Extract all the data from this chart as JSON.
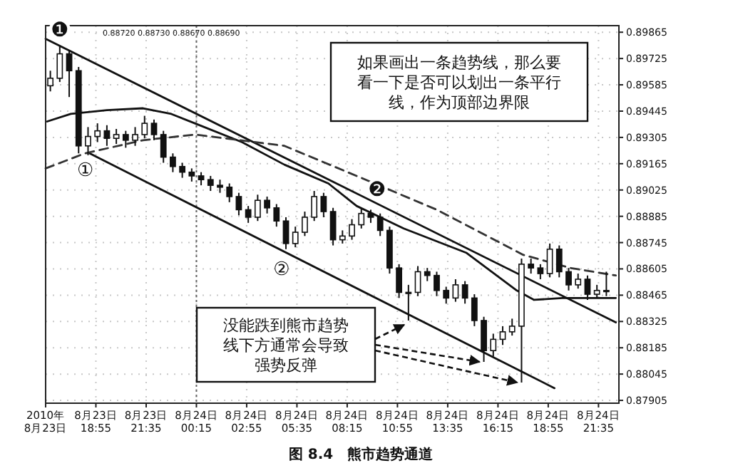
{
  "chart_data": {
    "type": "candlestick",
    "title": "图 8.4　熊市趋势通道",
    "annotations": [
      "0.88720 0.88730 0.88670 0.88690",
      "如果画出一条趋势线，那么要看一下是否可以划出一条平行线，作为顶部边界限",
      "没能跌到熊市趋势线下方通常会导致强势反弹",
      {
        "text": "❶",
        "x": "2010-08-23T17:00",
        "y": 0.8988
      },
      "①",
      "②",
      {
        "text": "❷",
        "x": "2010-08-24T09:50",
        "y": 0.8903
      }
    ],
    "x": [
      "2010-08-23T16:30",
      "2010-08-23T17:00",
      "2010-08-23T17:30",
      "2010-08-23T18:00",
      "2010-08-23T18:30",
      "2010-08-23T19:00",
      "2010-08-23T19:30",
      "2010-08-23T20:00",
      "2010-08-23T20:30",
      "2010-08-23T21:00",
      "2010-08-23T21:30",
      "2010-08-23T22:00",
      "2010-08-23T22:30",
      "2010-08-23T23:00",
      "2010-08-23T23:30",
      "2010-08-24T00:00",
      "2010-08-24T00:30",
      "2010-08-24T01:00",
      "2010-08-24T01:30",
      "2010-08-24T02:00",
      "2010-08-24T02:30",
      "2010-08-24T03:00",
      "2010-08-24T03:30",
      "2010-08-24T04:00",
      "2010-08-24T04:30",
      "2010-08-24T05:00",
      "2010-08-24T05:30",
      "2010-08-24T06:00",
      "2010-08-24T06:30",
      "2010-08-24T07:00",
      "2010-08-24T07:30",
      "2010-08-24T08:00",
      "2010-08-24T08:30",
      "2010-08-24T09:00",
      "2010-08-24T09:30",
      "2010-08-24T10:00",
      "2010-08-24T10:30",
      "2010-08-24T11:00",
      "2010-08-24T11:30",
      "2010-08-24T12:00",
      "2010-08-24T12:30",
      "2010-08-24T13:00",
      "2010-08-24T13:30",
      "2010-08-24T14:00",
      "2010-08-24T14:30",
      "2010-08-24T15:00",
      "2010-08-24T15:30",
      "2010-08-24T16:00",
      "2010-08-24T16:30",
      "2010-08-24T17:00",
      "2010-08-24T17:30",
      "2010-08-24T18:00",
      "2010-08-24T18:30",
      "2010-08-24T19:00",
      "2010-08-24T19:30",
      "2010-08-24T20:00",
      "2010-08-24T20:30",
      "2010-08-24T21:00",
      "2010-08-24T21:30",
      "2010-08-24T22:00"
    ],
    "ohlc": [
      [
        0.8958,
        0.8966,
        0.8955,
        0.8962
      ],
      [
        0.8962,
        0.8979,
        0.896,
        0.8975
      ],
      [
        0.8975,
        0.8977,
        0.8952,
        0.8966
      ],
      [
        0.8966,
        0.8968,
        0.8922,
        0.8926
      ],
      [
        0.8926,
        0.8936,
        0.8921,
        0.8931
      ],
      [
        0.8931,
        0.8938,
        0.8928,
        0.8934
      ],
      [
        0.8934,
        0.8937,
        0.8926,
        0.893
      ],
      [
        0.893,
        0.8935,
        0.8927,
        0.8932
      ],
      [
        0.8932,
        0.8934,
        0.8925,
        0.8929
      ],
      [
        0.8929,
        0.8936,
        0.8926,
        0.8932
      ],
      [
        0.8932,
        0.8942,
        0.893,
        0.8938
      ],
      [
        0.8938,
        0.894,
        0.8929,
        0.8932
      ],
      [
        0.8932,
        0.8934,
        0.8917,
        0.892
      ],
      [
        0.892,
        0.8922,
        0.8912,
        0.8915
      ],
      [
        0.8915,
        0.8917,
        0.8909,
        0.8912
      ],
      [
        0.8912,
        0.8914,
        0.8907,
        0.891
      ],
      [
        0.891,
        0.8912,
        0.8905,
        0.8908
      ],
      [
        0.8908,
        0.891,
        0.8902,
        0.8905
      ],
      [
        0.8905,
        0.8908,
        0.8901,
        0.8904
      ],
      [
        0.8904,
        0.8906,
        0.8896,
        0.8899
      ],
      [
        0.8899,
        0.8901,
        0.8889,
        0.8892
      ],
      [
        0.8892,
        0.8894,
        0.8885,
        0.8888
      ],
      [
        0.8888,
        0.89,
        0.8886,
        0.8897
      ],
      [
        0.8897,
        0.8899,
        0.889,
        0.8893
      ],
      [
        0.8893,
        0.8895,
        0.8883,
        0.8886
      ],
      [
        0.8886,
        0.8888,
        0.8871,
        0.8874
      ],
      [
        0.8874,
        0.8883,
        0.8872,
        0.888
      ],
      [
        0.888,
        0.8891,
        0.8878,
        0.8888
      ],
      [
        0.8888,
        0.8902,
        0.8886,
        0.8899
      ],
      [
        0.8899,
        0.8901,
        0.8888,
        0.8891
      ],
      [
        0.8891,
        0.8893,
        0.8873,
        0.8876
      ],
      [
        0.8876,
        0.8881,
        0.8874,
        0.8878
      ],
      [
        0.8878,
        0.8887,
        0.8876,
        0.8884
      ],
      [
        0.8884,
        0.8893,
        0.8882,
        0.889
      ],
      [
        0.889,
        0.8892,
        0.8885,
        0.8888
      ],
      [
        0.8888,
        0.889,
        0.8878,
        0.8881
      ],
      [
        0.8881,
        0.8883,
        0.8858,
        0.8861
      ],
      [
        0.8861,
        0.8863,
        0.8845,
        0.8848
      ],
      [
        0.8848,
        0.8852,
        0.8833,
        0.8848
      ],
      [
        0.8848,
        0.8862,
        0.8846,
        0.8859
      ],
      [
        0.8859,
        0.8861,
        0.8854,
        0.8857
      ],
      [
        0.8857,
        0.8859,
        0.8846,
        0.8849
      ],
      [
        0.8849,
        0.8851,
        0.8842,
        0.8845
      ],
      [
        0.8845,
        0.8855,
        0.8843,
        0.8852
      ],
      [
        0.8852,
        0.8854,
        0.8842,
        0.8845
      ],
      [
        0.8845,
        0.8847,
        0.883,
        0.8833
      ],
      [
        0.8833,
        0.8835,
        0.8811,
        0.8817
      ],
      [
        0.8817,
        0.8826,
        0.8814,
        0.8823
      ],
      [
        0.8823,
        0.883,
        0.882,
        0.8827
      ],
      [
        0.8827,
        0.8834,
        0.8825,
        0.883
      ],
      [
        0.883,
        0.8866,
        0.88,
        0.8863
      ],
      [
        0.8863,
        0.8866,
        0.8858,
        0.8861
      ],
      [
        0.8861,
        0.8863,
        0.8855,
        0.8858
      ],
      [
        0.8858,
        0.8874,
        0.8856,
        0.8871
      ],
      [
        0.8871,
        0.8873,
        0.8856,
        0.8859
      ],
      [
        0.8859,
        0.8861,
        0.8849,
        0.8852
      ],
      [
        0.8852,
        0.8858,
        0.885,
        0.8855
      ],
      [
        0.8855,
        0.8857,
        0.8844,
        0.8847
      ],
      [
        0.8847,
        0.8852,
        0.8845,
        0.8849
      ],
      [
        0.8849,
        0.8859,
        0.8846,
        0.8849
      ]
    ],
    "series": [
      {
        "type": "line",
        "color": "#111111",
        "line_style": "solid",
        "x": [
          "2010-08-23T16:15",
          "2010-08-24T22:30"
        ],
        "values": [
          0.8983,
          0.8832
        ]
      },
      {
        "type": "line",
        "color": "#111111",
        "line_style": "solid",
        "x": [
          "2010-08-23T18:35",
          "2010-08-24T19:15"
        ],
        "values": [
          0.8922,
          0.8797
        ]
      },
      {
        "type": "line",
        "color": "#111111",
        "line_style": "solid",
        "x": [
          "2010-08-23T16:20",
          "2010-08-23T17:35",
          "2010-08-23T19:30",
          "2010-08-23T21:25",
          "2010-08-23T22:55",
          "2010-08-24T00:10",
          "2010-08-24T02:40",
          "2010-08-24T04:55",
          "2010-08-24T07:15",
          "2010-08-24T08:45",
          "2010-08-24T11:15",
          "2010-08-24T14:35",
          "2010-08-24T17:15",
          "2010-08-24T18:10",
          "2010-08-24T19:40",
          "2010-08-24T22:30"
        ],
        "values": [
          0.8939,
          0.8943,
          0.8945,
          0.8946,
          0.8943,
          0.8938,
          0.8928,
          0.8916,
          0.8906,
          0.8894,
          0.8882,
          0.8869,
          0.8849,
          0.8844,
          0.8845,
          0.8845
        ]
      },
      {
        "type": "line",
        "color": "#333333",
        "line_style": "dashed",
        "x": [
          "2010-08-23T16:15",
          "2010-08-23T18:20",
          "2010-08-23T21:25",
          "2010-08-24T00:10",
          "2010-08-24T04:55",
          "2010-08-24T08:45",
          "2010-08-24T13:00",
          "2010-08-24T17:35",
          "2010-08-24T20:05",
          "2010-08-24T22:30"
        ],
        "values": [
          0.8914,
          0.8922,
          0.8929,
          0.8932,
          0.8926,
          0.891,
          0.8892,
          0.8868,
          0.8861,
          0.8857
        ]
      }
    ],
    "xlim": [
      "2010-08-23T16:15",
      "2010-08-24T22:40"
    ],
    "xticks": [
      {
        "value": "2010-08-23T16:15",
        "label": "2010年\n8月23日"
      },
      {
        "value": "2010-08-23T18:55",
        "label": "8月23日\n18:55"
      },
      {
        "value": "2010-08-23T21:35",
        "label": "8月23日\n21:35"
      },
      {
        "value": "2010-08-24T00:15",
        "label": "8月24日\n00:15"
      },
      {
        "value": "2010-08-24T02:55",
        "label": "8月24日\n02:55"
      },
      {
        "value": "2010-08-24T05:35",
        "label": "8月24日\n05:35"
      },
      {
        "value": "2010-08-24T08:15",
        "label": "8月24日\n08:15"
      },
      {
        "value": "2010-08-24T10:55",
        "label": "8月24日\n10:55"
      },
      {
        "value": "2010-08-24T13:35",
        "label": "8月24日\n13:35"
      },
      {
        "value": "2010-08-24T16:15",
        "label": "8月24日\n16:15"
      },
      {
        "value": "2010-08-24T18:55",
        "label": "8月24日\n18:55"
      },
      {
        "value": "2010-08-24T21:35",
        "label": "8月24日\n21:35"
      }
    ],
    "ylim": [
      0.8789,
      0.899
    ],
    "yticks": [
      {
        "value": 0.89865,
        "label": "0.89865"
      },
      {
        "value": 0.89725,
        "label": "0.89725"
      },
      {
        "value": 0.89585,
        "label": "0.89585"
      },
      {
        "value": 0.89445,
        "label": "0.89445"
      },
      {
        "value": 0.89305,
        "label": "0.89305"
      },
      {
        "value": 0.89165,
        "label": "0.89165"
      },
      {
        "value": 0.89025,
        "label": "0.89025"
      },
      {
        "value": 0.88885,
        "label": "0.88885"
      },
      {
        "value": 0.88745,
        "label": "0.88745"
      },
      {
        "value": 0.88605,
        "label": "0.88605"
      },
      {
        "value": 0.88465,
        "label": "0.88465"
      },
      {
        "value": 0.88325,
        "label": "0.88325"
      },
      {
        "value": 0.88185,
        "label": "0.88185"
      },
      {
        "value": 0.88045,
        "label": "0.88045"
      },
      {
        "value": 0.87905,
        "label": "0.87905"
      }
    ],
    "grid": true,
    "ref_lines": [
      {
        "axis": "x",
        "value": "2010-08-24T00:15",
        "line_style": "dotted",
        "color": "#666666"
      }
    ]
  }
}
